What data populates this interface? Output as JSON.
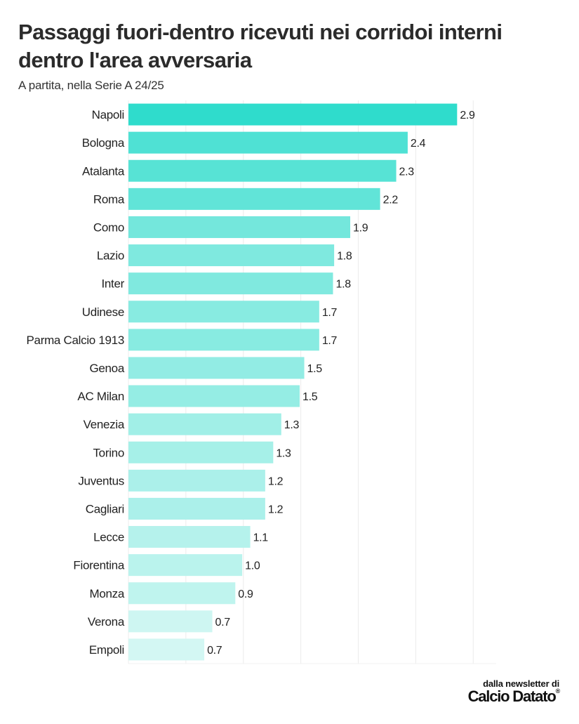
{
  "header": {
    "title": "Passaggi fuori-dentro ricevuti nei corridoi interni dentro l'area avversaria",
    "subtitle": "A partita, nella Serie A 24/25"
  },
  "footer": {
    "line1": "dalla newsletter di",
    "brand": "Calcio Datato"
  },
  "chart_data": {
    "type": "bar",
    "orientation": "horizontal",
    "title": "Passaggi fuori-dentro ricevuti nei corridoi interni dentro l'area avversaria",
    "subtitle": "A partita, nella Serie A 24/25",
    "xlabel": "",
    "ylabel": "",
    "xlim": [
      0,
      3.2
    ],
    "grid": "vertical",
    "legend": "none",
    "color_scale": [
      "#d3f7f3",
      "#2fdccc"
    ],
    "categories": [
      "Napoli",
      "Bologna",
      "Atalanta",
      "Roma",
      "Como",
      "Lazio",
      "Inter",
      "Udinese",
      "Parma Calcio 1913",
      "Genoa",
      "AC Milan",
      "Venezia",
      "Torino",
      "Juventus",
      "Cagliari",
      "Lecce",
      "Fiorentina",
      "Monza",
      "Verona",
      "Empoli"
    ],
    "values": [
      2.86,
      2.43,
      2.33,
      2.19,
      1.93,
      1.79,
      1.78,
      1.66,
      1.66,
      1.53,
      1.49,
      1.33,
      1.26,
      1.19,
      1.19,
      1.06,
      0.99,
      0.93,
      0.73,
      0.66
    ],
    "labels": [
      "2.9",
      "2.4",
      "2.3",
      "2.2",
      "1.9",
      "1.8",
      "1.8",
      "1.7",
      "1.7",
      "1.5",
      "1.5",
      "1.3",
      "1.3",
      "1.2",
      "1.2",
      "1.1",
      "1.0",
      "0.9",
      "0.7",
      "0.7"
    ]
  }
}
